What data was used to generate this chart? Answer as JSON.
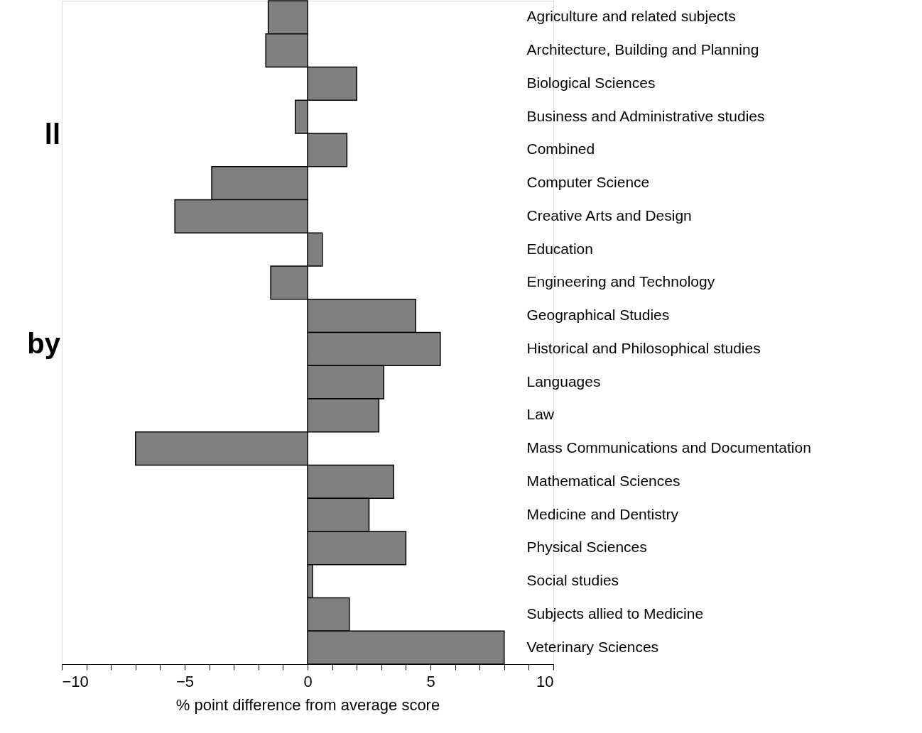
{
  "chart_data": {
    "type": "bar",
    "orientation": "horizontal",
    "xlabel": "% point difference from average score",
    "categories": [
      "Agriculture and related subjects",
      "Architecture, Building and Planning",
      "Biological Sciences",
      "Business and Administrative studies",
      "Combined",
      "Computer Science",
      "Creative Arts and Design",
      "Education",
      "Engineering and Technology",
      "Geographical Studies",
      "Historical and Philosophical studies",
      "Languages",
      "Law",
      "Mass Communications and Documentation",
      "Mathematical Sciences",
      "Medicine and Dentistry",
      "Physical Sciences",
      "Social studies",
      "Subjects allied to Medicine",
      "Veterinary Sciences"
    ],
    "values": [
      -1.6,
      -1.7,
      2.0,
      -0.5,
      1.6,
      -3.9,
      -5.4,
      0.6,
      -1.5,
      4.4,
      5.4,
      3.1,
      2.9,
      -7.0,
      3.5,
      2.5,
      4.0,
      0.2,
      1.7,
      8.0
    ],
    "color": "#808080",
    "xlim": [
      -10,
      10
    ],
    "xticks": [
      {
        "value": -10,
        "label": "−10"
      },
      {
        "value": -9,
        "label": null
      },
      {
        "value": -8,
        "label": null
      },
      {
        "value": -7,
        "label": null
      },
      {
        "value": -6,
        "label": null
      },
      {
        "value": -5,
        "label": "−5"
      },
      {
        "value": -4,
        "label": null
      },
      {
        "value": -3,
        "label": null
      },
      {
        "value": -2,
        "label": null
      },
      {
        "value": -1,
        "label": null
      },
      0,
      {
        "value": 1,
        "label": null
      },
      {
        "value": 2,
        "label": null
      },
      {
        "value": 3,
        "label": null
      },
      {
        "value": 4,
        "label": null
      },
      5,
      {
        "value": 6,
        "label": null
      },
      {
        "value": 7,
        "label": null
      },
      {
        "value": 8,
        "label": null
      },
      {
        "value": 9,
        "label": null
      },
      10
    ],
    "grid": false,
    "annotations": [
      "ll",
      "by"
    ]
  }
}
